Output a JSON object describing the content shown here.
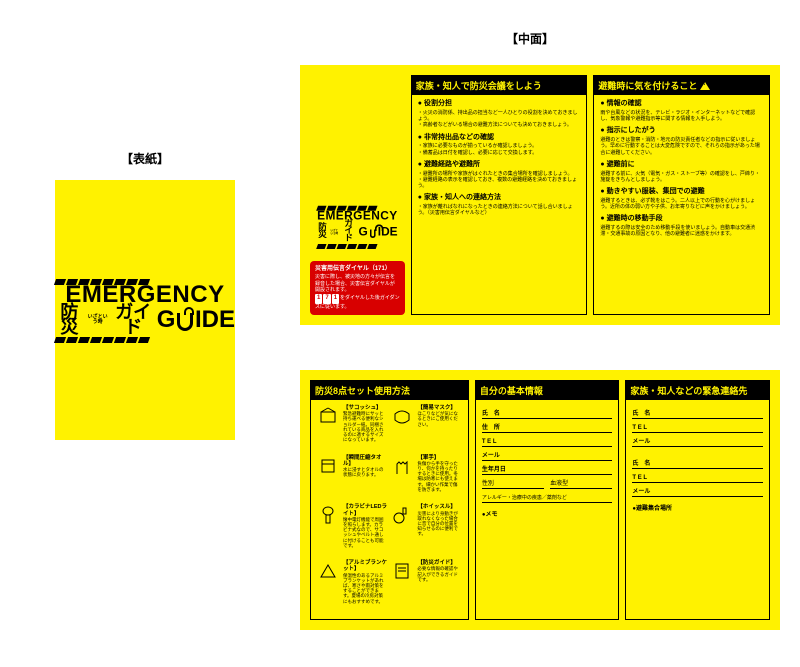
{
  "labels": {
    "cover": "【表紙】",
    "inside": "【中面】"
  },
  "logo": {
    "emergency": "EMERGENCY",
    "bousai": "防災",
    "small": "いざという時",
    "gaido": "ガイド",
    "guide_g": "G",
    "guide_ide": "IDE"
  },
  "colors": {
    "yellow": "#fff200",
    "red": "#d80000",
    "black": "#000000"
  },
  "redbox": {
    "title": "災害用伝言ダイヤル（171）",
    "desc": "災害に際し、被災地の方々が伝言を録音した場合、災害伝言ダイヤルが開設されます。",
    "nums": "171",
    "after": "をダイヤルした後ガイダンスに従います。"
  },
  "top_left_head": "家族・知人で防災会議をしよう",
  "top_left_items": [
    {
      "t": "役割分担",
      "d": "・火災の消防係、持出品の担当など一人ひとりの役割を決めておきましょう。\n・高齢者などがいる場合の避難方法についても決めておきましょう。"
    },
    {
      "t": "非常持出品などの確認",
      "d": "・家族に必要なものが揃っているか確認しましょう。\n・備蓄品は日付を確認し、必要に応じて交換します。"
    },
    {
      "t": "避難経路や避難所",
      "d": "・避難所の場所や家族がはぐれたときの集合場所を確認しましょう。\n・避難経路の表示を確認しておき、複数の避難経路を決めておきましょう。"
    },
    {
      "t": "家族・知人への連絡方法",
      "d": "・家族が離ればなれになったときの連絡方法について話し合いましょう。（災害用伝言ダイヤルなど）"
    }
  ],
  "top_right_head": "避難時に気を付けること",
  "top_right_items": [
    {
      "t": "情報の確認",
      "d": "雨や台風などの状況を、テレビ・ラジオ・インターネットなどで確認し、気象警報や避難指示等に関する情報を入手しよう。"
    },
    {
      "t": "指示にしたがう",
      "d": "避難のときは警察・消防・地元の防災責任者などの指示に従いましょう。早めに行動することは大変危険ですので、それらの指示があった場合に避難してください。"
    },
    {
      "t": "避難前に",
      "d": "避難する前に、火気（電気・ガス・ストーブ等）の確認をし、戸締り・施錠をきちんとしましょう。"
    },
    {
      "t": "動きやすい服装、集団での避難",
      "d": "避難するときは、必ず靴をはこう。二人以上での行動を心がけましょう。近所の体の弱い方や子供、お年寄りなどに声をかけましょう。"
    },
    {
      "t": "避難時の移動手段",
      "d": "避難するの際は安全のため移動手段を使いましょう。自動車は交通渋滞・交通事故の原因となり、他の避難者に迷惑をかけます。"
    }
  ],
  "bot_col1_head": "防災8点セット使用方法",
  "bot_items": [
    {
      "t": "【サコッシュ】",
      "d": "緊急避難時にサッと持ち運べる便利なショルダー紐。同梱されている商品を入れるのに適するサイズになっています。"
    },
    {
      "t": "【簡易マスク】",
      "d": "ほこりなどが気になるときにご使用ください。"
    },
    {
      "t": "【瞬間圧縮タオル】",
      "d": "水に浸すとタオルの状態に戻ります。"
    },
    {
      "t": "【軍手】",
      "d": "負傷から手を守ったり、何かを持ったりするときに使用。冬場は防寒にも使えます。細かい作業で傷を防ぎます。"
    },
    {
      "t": "【カラビナLEDライト】",
      "d": "懐中電灯機能で周囲を照らします。カラビナ式なので、サコッシュやベルト通しに付けることも可能です。"
    },
    {
      "t": "【ホイッスル】",
      "d": "災害により身動きが取れなくなった場合に音で自分の位置を知らせるのに便利です。"
    },
    {
      "t": "【アルミブランケット】",
      "d": "保温性のあるアルミブランケットがあれば、寒さや雨対策をすることができます。夏場の冷房対策にもおすすめです。"
    },
    {
      "t": "【防災ガイド】",
      "d": "必要な情報の確認や記入ができるガイドです。"
    }
  ],
  "bot_col2_head": "自分の基本情報",
  "info_fields": [
    "氏　名",
    "住　所",
    "T E L",
    "メール",
    "生年月日"
  ],
  "info_half": [
    "性別",
    "血液型"
  ],
  "info_allergy": "アレルギー・治療中の疾患／薬剤など",
  "memo": "●メモ",
  "bot_col3_head": "家族・知人などの緊急連絡先",
  "contact_fields": [
    "氏　名",
    "T E L",
    "メール"
  ],
  "shelter": "●避難集合場所"
}
